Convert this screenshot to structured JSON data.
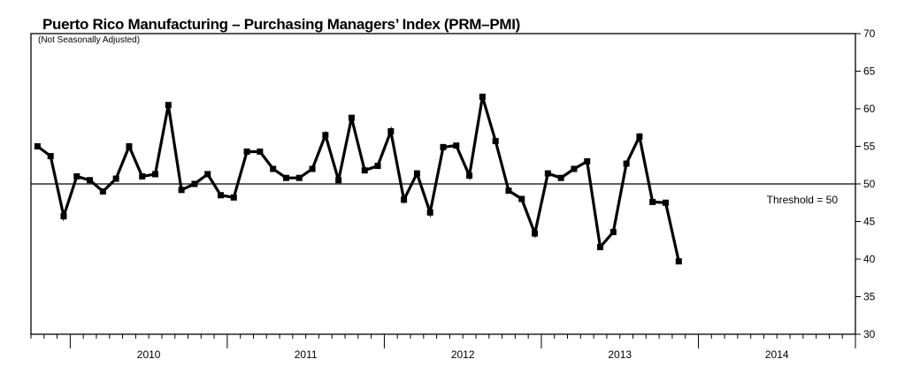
{
  "chart_data": {
    "type": "line",
    "title": "Puerto Rico Manufacturing – Purchasing Managers’ Index (PRM–PMI)",
    "subtitle": "(Not Seasonally Adjusted)",
    "xlabel": "",
    "ylabel": "",
    "ylim": [
      30,
      70
    ],
    "yticks": [
      30,
      35,
      40,
      45,
      50,
      55,
      60,
      65,
      70
    ],
    "x_tick_labels": [
      "2010",
      "2011",
      "2012",
      "2013",
      "2014"
    ],
    "x_start": "2009-10",
    "x_end": "2014-12",
    "reference_line": {
      "value": 50,
      "label": "Threshold = 50"
    },
    "grid": false,
    "y_axis_side": "right",
    "color": "#000000",
    "series": [
      {
        "values": [
          55.0,
          53.7,
          45.7,
          51.0,
          50.5,
          49.0,
          50.7,
          55.0,
          51.0,
          51.3,
          60.5,
          49.2,
          50.0,
          51.3,
          48.5,
          48.2,
          54.3,
          54.3,
          52.0,
          50.8,
          50.8,
          52.0,
          56.5,
          50.5,
          58.8,
          51.8,
          52.4,
          57.0,
          47.9,
          51.4,
          46.2,
          54.9,
          55.1,
          51.1,
          61.6,
          55.7,
          49.1,
          48.0,
          43.4,
          51.4,
          50.8,
          52.0,
          53.0,
          41.6,
          43.6,
          52.7,
          56.3,
          47.6,
          47.5,
          39.7
        ]
      }
    ]
  }
}
